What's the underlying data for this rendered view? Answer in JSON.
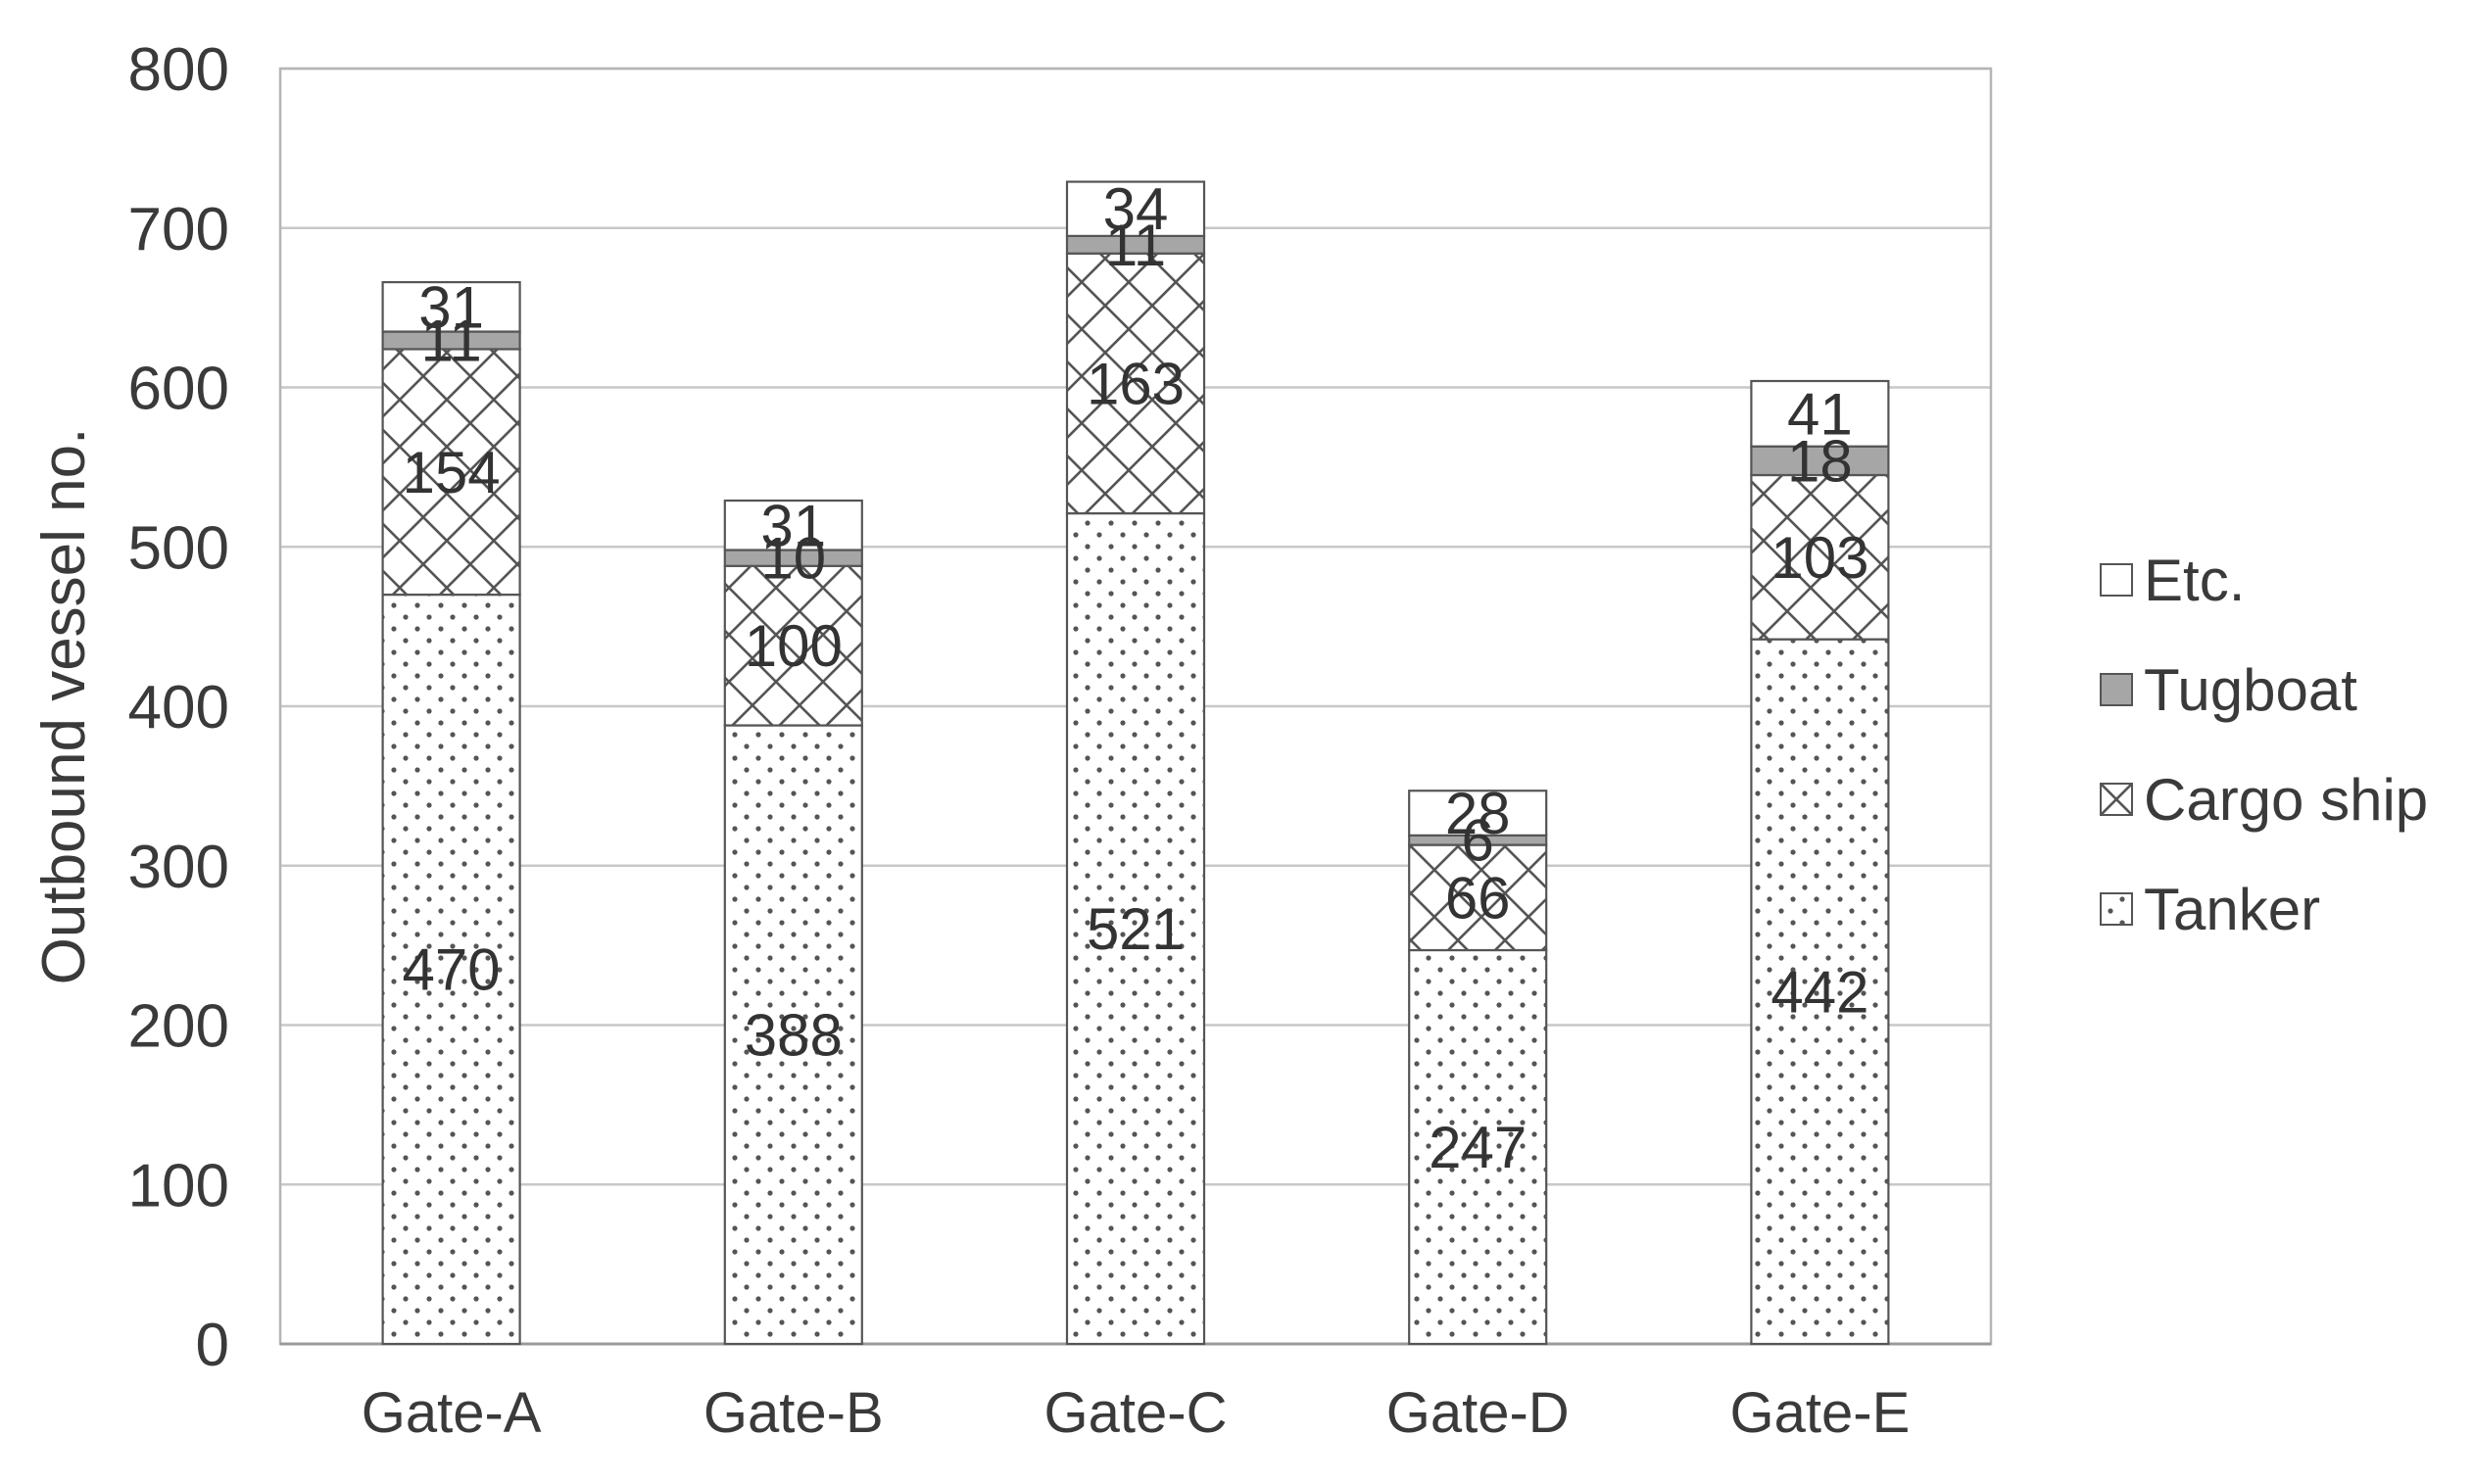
{
  "chart_data": {
    "type": "bar",
    "stacked": true,
    "title": "",
    "xlabel": "",
    "ylabel": "Outbound vessel no.",
    "ylim": [
      0,
      800
    ],
    "yticks": [
      0,
      100,
      200,
      300,
      400,
      500,
      600,
      700,
      800
    ],
    "grid": true,
    "legend_position": "right",
    "categories": [
      "Gate-A",
      "Gate-B",
      "Gate-C",
      "Gate-D",
      "Gate-E"
    ],
    "series": [
      {
        "name": "Tanker",
        "pattern": "dots",
        "values": [
          470,
          388,
          521,
          247,
          442
        ]
      },
      {
        "name": "Cargo ship",
        "pattern": "crosshatch",
        "values": [
          154,
          100,
          163,
          66,
          103
        ]
      },
      {
        "name": "Tugboat",
        "pattern": "solid-gray",
        "color": "#a6a6a6",
        "values": [
          11,
          10,
          11,
          6,
          18
        ]
      },
      {
        "name": "Etc.",
        "pattern": "blank",
        "color": "#ffffff",
        "values": [
          31,
          31,
          34,
          28,
          41
        ]
      }
    ],
    "legend_order": [
      "Etc.",
      "Tugboat",
      "Cargo ship",
      "Tanker"
    ]
  }
}
